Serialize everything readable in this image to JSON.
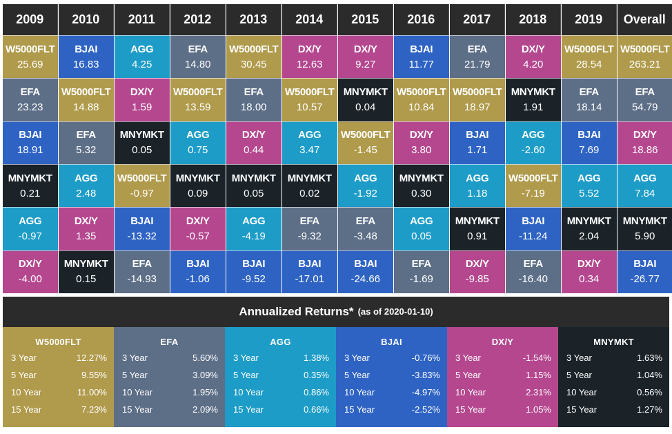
{
  "colors": {
    "W5000FLT": "#b09a4b",
    "BJAI": "#2e63c4",
    "AGG": "#1d9cc8",
    "EFA": "#5d6e87",
    "DX/Y": "#b5478f",
    "MNYMKT": "#1b2329",
    "header": "#2b2b2b"
  },
  "years": [
    "2009",
    "2010",
    "2011",
    "2012",
    "2013",
    "2014",
    "2015",
    "2016",
    "2017",
    "2018",
    "2019",
    "Overall"
  ],
  "columns": [
    [
      [
        "W5000FLT",
        "25.69"
      ],
      [
        "EFA",
        "23.23"
      ],
      [
        "BJAI",
        "18.91"
      ],
      [
        "MNYMKT",
        "0.21"
      ],
      [
        "AGG",
        "-0.97"
      ],
      [
        "DX/Y",
        "-4.00"
      ]
    ],
    [
      [
        "BJAI",
        "16.83"
      ],
      [
        "W5000FLT",
        "14.88"
      ],
      [
        "EFA",
        "5.32"
      ],
      [
        "AGG",
        "2.48"
      ],
      [
        "DX/Y",
        "1.35"
      ],
      [
        "MNYMKT",
        "0.15"
      ]
    ],
    [
      [
        "AGG",
        "4.25"
      ],
      [
        "DX/Y",
        "1.59"
      ],
      [
        "MNYMKT",
        "0.05"
      ],
      [
        "W5000FLT",
        "-0.97"
      ],
      [
        "BJAI",
        "-13.32"
      ],
      [
        "EFA",
        "-14.93"
      ]
    ],
    [
      [
        "EFA",
        "14.80"
      ],
      [
        "W5000FLT",
        "13.59"
      ],
      [
        "AGG",
        "0.75"
      ],
      [
        "MNYMKT",
        "0.09"
      ],
      [
        "DX/Y",
        "-0.57"
      ],
      [
        "BJAI",
        "-1.06"
      ]
    ],
    [
      [
        "W5000FLT",
        "30.45"
      ],
      [
        "EFA",
        "18.00"
      ],
      [
        "DX/Y",
        "0.44"
      ],
      [
        "MNYMKT",
        "0.05"
      ],
      [
        "AGG",
        "-4.19"
      ],
      [
        "BJAI",
        "-9.52"
      ]
    ],
    [
      [
        "DX/Y",
        "12.63"
      ],
      [
        "W5000FLT",
        "10.57"
      ],
      [
        "AGG",
        "3.47"
      ],
      [
        "MNYMKT",
        "0.02"
      ],
      [
        "EFA",
        "-9.32"
      ],
      [
        "BJAI",
        "-17.01"
      ]
    ],
    [
      [
        "DX/Y",
        "9.27"
      ],
      [
        "MNYMKT",
        "0.04"
      ],
      [
        "W5000FLT",
        "-1.45"
      ],
      [
        "AGG",
        "-1.92"
      ],
      [
        "EFA",
        "-3.48"
      ],
      [
        "BJAI",
        "-24.66"
      ]
    ],
    [
      [
        "BJAI",
        "11.77"
      ],
      [
        "W5000FLT",
        "10.84"
      ],
      [
        "DX/Y",
        "3.80"
      ],
      [
        "MNYMKT",
        "0.30"
      ],
      [
        "AGG",
        "0.05"
      ],
      [
        "EFA",
        "-1.69"
      ]
    ],
    [
      [
        "EFA",
        "21.79"
      ],
      [
        "W5000FLT",
        "18.97"
      ],
      [
        "BJAI",
        "1.71"
      ],
      [
        "AGG",
        "1.18"
      ],
      [
        "MNYMKT",
        "0.91"
      ],
      [
        "DX/Y",
        "-9.85"
      ]
    ],
    [
      [
        "DX/Y",
        "4.20"
      ],
      [
        "MNYMKT",
        "1.91"
      ],
      [
        "AGG",
        "-2.60"
      ],
      [
        "W5000FLT",
        "-7.19"
      ],
      [
        "BJAI",
        "-11.24"
      ],
      [
        "EFA",
        "-16.40"
      ]
    ],
    [
      [
        "W5000FLT",
        "28.54"
      ],
      [
        "EFA",
        "18.14"
      ],
      [
        "BJAI",
        "7.69"
      ],
      [
        "AGG",
        "5.52"
      ],
      [
        "MNYMKT",
        "2.04"
      ],
      [
        "DX/Y",
        "0.34"
      ]
    ],
    [
      [
        "W5000FLT",
        "263.21"
      ],
      [
        "EFA",
        "54.79"
      ],
      [
        "DX/Y",
        "18.86"
      ],
      [
        "AGG",
        "7.84"
      ],
      [
        "MNYMKT",
        "5.90"
      ],
      [
        "BJAI",
        "-26.77"
      ]
    ]
  ],
  "annualized": {
    "title": "Annualized Returns*",
    "subtitle": "(as of 2020-01-10)",
    "funds": [
      {
        "name": "W5000FLT",
        "rows": [
          [
            "3 Year",
            "12.27%"
          ],
          [
            "5 Year",
            "9.55%"
          ],
          [
            "10 Year",
            "11.00%"
          ],
          [
            "15 Year",
            "7.23%"
          ]
        ]
      },
      {
        "name": "EFA",
        "rows": [
          [
            "3 Year",
            "5.60%"
          ],
          [
            "5 Year",
            "3.09%"
          ],
          [
            "10 Year",
            "1.95%"
          ],
          [
            "15 Year",
            "2.09%"
          ]
        ]
      },
      {
        "name": "AGG",
        "rows": [
          [
            "3 Year",
            "1.38%"
          ],
          [
            "5 Year",
            "0.35%"
          ],
          [
            "10 Year",
            "0.86%"
          ],
          [
            "15 Year",
            "0.66%"
          ]
        ]
      },
      {
        "name": "BJAI",
        "rows": [
          [
            "3 Year",
            "-0.76%"
          ],
          [
            "5 Year",
            "-3.83%"
          ],
          [
            "10 Year",
            "-4.97%"
          ],
          [
            "15 Year",
            "-2.52%"
          ]
        ]
      },
      {
        "name": "DX/Y",
        "rows": [
          [
            "3 Year",
            "-1.54%"
          ],
          [
            "5 Year",
            "1.15%"
          ],
          [
            "10 Year",
            "2.31%"
          ],
          [
            "15 Year",
            "1.05%"
          ]
        ]
      },
      {
        "name": "MNYMKT",
        "rows": [
          [
            "3 Year",
            "1.63%"
          ],
          [
            "5 Year",
            "1.04%"
          ],
          [
            "10 Year",
            "0.56%"
          ],
          [
            "15 Year",
            "1.27%"
          ]
        ]
      }
    ]
  }
}
